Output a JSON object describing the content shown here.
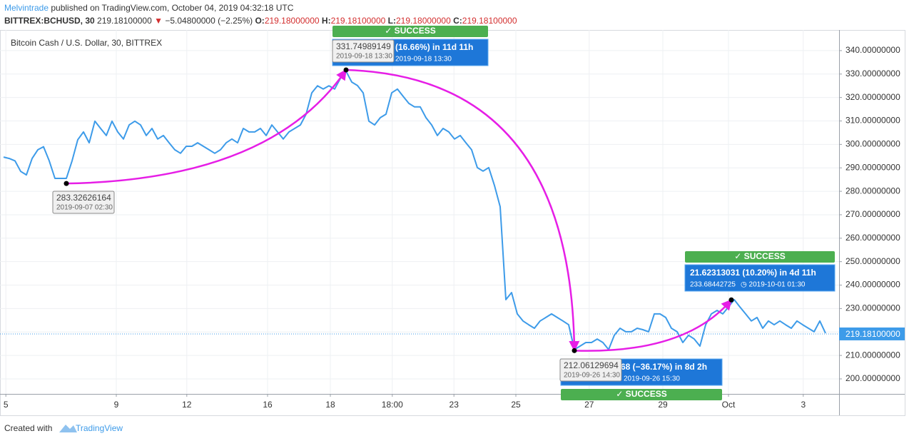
{
  "header": {
    "author": "Melvintrade",
    "published": " published on TradingView.com, October 04, 2019 04:32:18 UTC",
    "symbol": "BITTREX:BCHUSD, 30",
    "price": "219.18100000",
    "change_arrow": "▼",
    "change": "−5.04800000 (−2.25%)",
    "o_label": "O:",
    "o": "219.18000000",
    "h_label": "H:",
    "h": "219.18100000",
    "l_label": "L:",
    "l": "219.18000000",
    "c_label": "C:",
    "c": "219.18100000"
  },
  "chart_data": {
    "type": "line",
    "title": "Bitcoin Cash / U.S. Dollar, 30, BITTREX",
    "series": [
      {
        "name": "BCHUSD",
        "color": "#3d9be9",
        "values": [
          294.6,
          294,
          293,
          288.5,
          287,
          294,
          297.7,
          299,
          293,
          285.5,
          285.5,
          285.5,
          293,
          302,
          305.3,
          300.7,
          309.9,
          306.8,
          303.8,
          309.9,
          305.3,
          302.3,
          308.3,
          309.9,
          308.3,
          303.8,
          306.8,
          302.3,
          303.8,
          300.7,
          297.7,
          296.2,
          299.2,
          299.2,
          300.7,
          299.2,
          297.7,
          296.2,
          297.7,
          300.7,
          302.3,
          300.7,
          306.8,
          305.3,
          305.3,
          306.8,
          303.8,
          308.3,
          305.3,
          302.3,
          305.3,
          306.8,
          308.3,
          312.9,
          322,
          325,
          323.6,
          325,
          323.6,
          328.1,
          331.2,
          326.6,
          325.1,
          322,
          309.9,
          308.3,
          311.4,
          312.9,
          322,
          323.6,
          320.5,
          317.5,
          316,
          316,
          311.4,
          308.3,
          303.8,
          306.8,
          305.3,
          302.3,
          303.8,
          300.7,
          297.7,
          290.1,
          288.6,
          290.1,
          282.5,
          273.4,
          233.8,
          236.8,
          227.7,
          224.7,
          223.1,
          221.6,
          224.7,
          226.2,
          227.7,
          226.2,
          224.7,
          223.1,
          212.5,
          214,
          215.5,
          215.5,
          217,
          215.5,
          212.5,
          218.6,
          221.6,
          220.1,
          220.1,
          221.6,
          221,
          220.1,
          227.7,
          227.7,
          226.2,
          221.6,
          220.1,
          215.5,
          218.6,
          217,
          214,
          223.1,
          227.7,
          229.2,
          227.7,
          230.7,
          233.8,
          230.7,
          227.7,
          224.7,
          226.2,
          221.6,
          224.7,
          223.1,
          224.7,
          223.1,
          221.6,
          224.7,
          223.1,
          221.6,
          220.1,
          224.7,
          219.5
        ]
      }
    ],
    "xlim": [
      -0.625,
      146.375
    ],
    "xticks": [
      {
        "value": 0.4,
        "label": "5"
      },
      {
        "value": 19.75,
        "label": "9"
      },
      {
        "value": 32.1,
        "label": "12"
      },
      {
        "value": 46.25,
        "label": "16"
      },
      {
        "value": 57.25,
        "label": "18"
      },
      {
        "value": 68.1,
        "label": "18:00"
      },
      {
        "value": 78.9,
        "label": "23"
      },
      {
        "value": 89.75,
        "label": "25"
      },
      {
        "value": 102.6,
        "label": "27"
      },
      {
        "value": 115.5,
        "label": "29"
      },
      {
        "value": 127,
        "label": "Oct"
      },
      {
        "value": 140.1,
        "label": "3"
      }
    ],
    "ylim": [
      193.6,
      348.8
    ],
    "yticks": [
      {
        "value": 200,
        "label": "200.00000000"
      },
      {
        "value": 210,
        "label": "210.00000000"
      },
      {
        "value": 220,
        "label": "220.00000000"
      },
      {
        "value": 230,
        "label": "230.00000000"
      },
      {
        "value": 240,
        "label": "240.00000000"
      },
      {
        "value": 250,
        "label": "250.00000000"
      },
      {
        "value": 260,
        "label": "260.00000000"
      },
      {
        "value": 270,
        "label": "270.00000000"
      },
      {
        "value": 280,
        "label": "280.00000000"
      },
      {
        "value": 290,
        "label": "290.00000000"
      },
      {
        "value": 300,
        "label": "300.00000000"
      },
      {
        "value": 310,
        "label": "310.00000000"
      },
      {
        "value": 320,
        "label": "320.00000000"
      },
      {
        "value": 330,
        "label": "330.00000000"
      },
      {
        "value": 340,
        "label": "340.00000000"
      }
    ],
    "grid": true,
    "last_price": {
      "value": 219.181,
      "label": "219.18100000"
    },
    "points": [
      {
        "price": 283.32626164,
        "label": "283.32626164",
        "time": "2019-09-07 02:30"
      },
      {
        "price": 331.74989149,
        "label": "331.74989149",
        "time": "2019-09-18 13:30"
      },
      {
        "price": 212.06129694,
        "label": "212.06129694",
        "time": "2019-09-26 14:30"
      },
      {
        "price": 233.68442725,
        "label": "233.68442725"
      }
    ],
    "results": [
      {
        "status": "✓ SUCCESS",
        "line1": "(16.66%) in 11d 11h",
        "line2": "2019-09-18  13:30"
      },
      {
        "status": "✓ SUCCESS",
        "line1": "68 (−36.17%) in 8d 2h",
        "line2": "2019-09-26  15:30"
      },
      {
        "status": "✓ SUCCESS",
        "line1": "21.62313031 (10.20%) in 4d 11h",
        "line2": "◷ 2019-10-01  01:30"
      }
    ]
  },
  "footer": {
    "created": "Created with",
    "brand": "TradingView"
  }
}
